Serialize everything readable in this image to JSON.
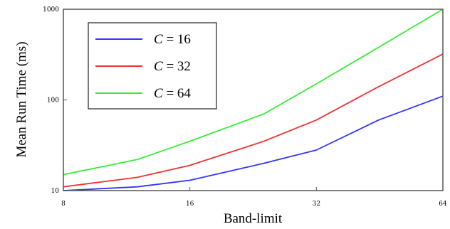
{
  "chart_data": {
    "type": "line",
    "xlabel": "Band-limit",
    "ylabel": "Mean Run Time (ms)",
    "xscale": "log2",
    "yscale": "log10",
    "xlim": [
      8,
      64
    ],
    "ylim": [
      10,
      1000
    ],
    "x_ticks": [
      8,
      16,
      32,
      64
    ],
    "x_tick_labels": [
      "8",
      "16",
      "32",
      "64"
    ],
    "y_ticks": [
      10,
      100,
      1000
    ],
    "y_tick_labels": [
      "10",
      "100",
      "1000"
    ],
    "grid": false,
    "legend_position": "top-left",
    "series": [
      {
        "name": "C = 16",
        "legend_var": "C",
        "legend_value": "= 16",
        "color": "#3333ff",
        "x": [
          8,
          12,
          16,
          24,
          32,
          45,
          64
        ],
        "y": [
          10,
          11,
          13,
          20,
          28,
          60,
          110
        ]
      },
      {
        "name": "C = 32",
        "legend_var": "C",
        "legend_value": "= 32",
        "color": "#ee3333",
        "x": [
          8,
          12,
          16,
          24,
          32,
          45,
          64
        ],
        "y": [
          11,
          14,
          19,
          35,
          60,
          140,
          320
        ]
      },
      {
        "name": "C = 64",
        "legend_var": "C",
        "legend_value": "= 64",
        "color": "#33ee33",
        "x": [
          8,
          12,
          16,
          24,
          32,
          45,
          64
        ],
        "y": [
          15,
          22,
          35,
          70,
          150,
          380,
          1000
        ]
      }
    ]
  }
}
